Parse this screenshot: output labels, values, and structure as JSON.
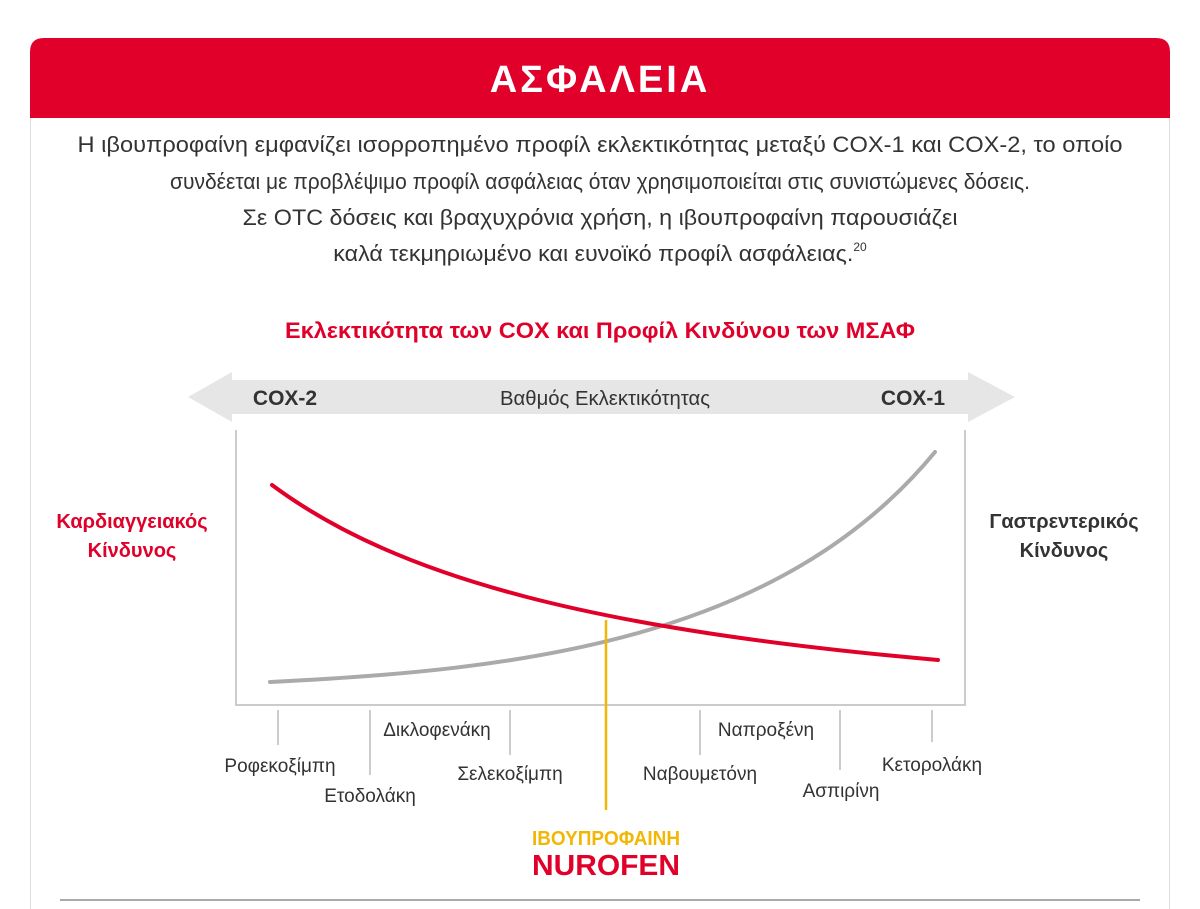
{
  "header": {
    "title": "ΑΣΦΑΛΕΙΑ"
  },
  "intro": {
    "lines": [
      "Η ιβουπροφαίνη εμφανίζει ισορροπημένο προφίλ εκλεκτικότητας μεταξύ COX-1 και COX-2, το οποίο",
      "συνδέεται με προβλέψιμο προφίλ ασφάλειας όταν χρησιμοποιείται στις συνιστώμενες δόσεις.",
      "Σε OTC δόσεις και βραχυχρόνια χρήση, η ιβουπροφαίνη παρουσιάζει",
      "καλά τεκμηριωμένο και ευνοϊκό προφίλ ασφάλειας."
    ],
    "reference": "20"
  },
  "diagram": {
    "title": "Εκλεκτικότητα των COX και Προφίλ Κινδύνου των ΜΣΑΦ",
    "axis": {
      "left": "COX-2",
      "center": "Βαθμός Εκλεκτικότητας",
      "right": "COX-1"
    },
    "left_label": [
      "Καρδιαγγειακός",
      "Κίνδυνος"
    ],
    "right_label": [
      "Γαστρεντερικός",
      "Κίνδυνος"
    ],
    "drugs": [
      "Ροφεκοξίμπη",
      "Ετοδολάκη",
      "Δικλοφενάκη",
      "Σελεκοξίμπη",
      "Ναβουμετόνη",
      "Ναπροξένη",
      "Ασπιρίνη",
      "Κετορολάκη"
    ],
    "highlight": {
      "name": "ΙΒΟΥΠΡΟΦΑΙΝΗ",
      "brand": "NUROFEN"
    }
  }
}
